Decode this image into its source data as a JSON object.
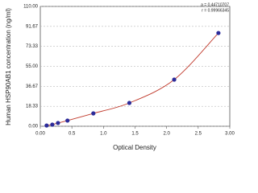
{
  "chart_data": {
    "type": "scatter",
    "xlabel": "Optical Density",
    "ylabel": "Human HSP90AB1 concentration (ng/ml)",
    "annotations": [
      "a = 0.44710707",
      "r = 0.99966345"
    ],
    "x": [
      0.1,
      0.19,
      0.28,
      0.43,
      0.84,
      1.41,
      2.12,
      2.82
    ],
    "series": [
      {
        "color": "#2b2b9a",
        "line_color": "#c0392b",
        "values": [
          0.7,
          1.5,
          3.0,
          5.2,
          11.8,
          21.4,
          42.8,
          85.6
        ]
      }
    ],
    "xlim": [
      0,
      3
    ],
    "xticks": [
      {
        "value": 0,
        "label": "0.00"
      },
      {
        "value": 0.5,
        "label": "0.5"
      },
      {
        "value": 1,
        "label": "1.0"
      },
      {
        "value": 1.5,
        "label": "1.5"
      },
      {
        "value": 2,
        "label": "2.0"
      },
      {
        "value": 2.5,
        "label": "2.5"
      },
      {
        "value": 3,
        "label": "3.00"
      }
    ],
    "ylim": [
      0,
      110
    ],
    "yticks": [
      {
        "value": 0,
        "label": "0.00"
      },
      18.33,
      36.67,
      {
        "value": 55,
        "label": "55.00"
      },
      73.33,
      91.67,
      {
        "value": 110,
        "label": "110.00"
      }
    ],
    "grid": true
  }
}
